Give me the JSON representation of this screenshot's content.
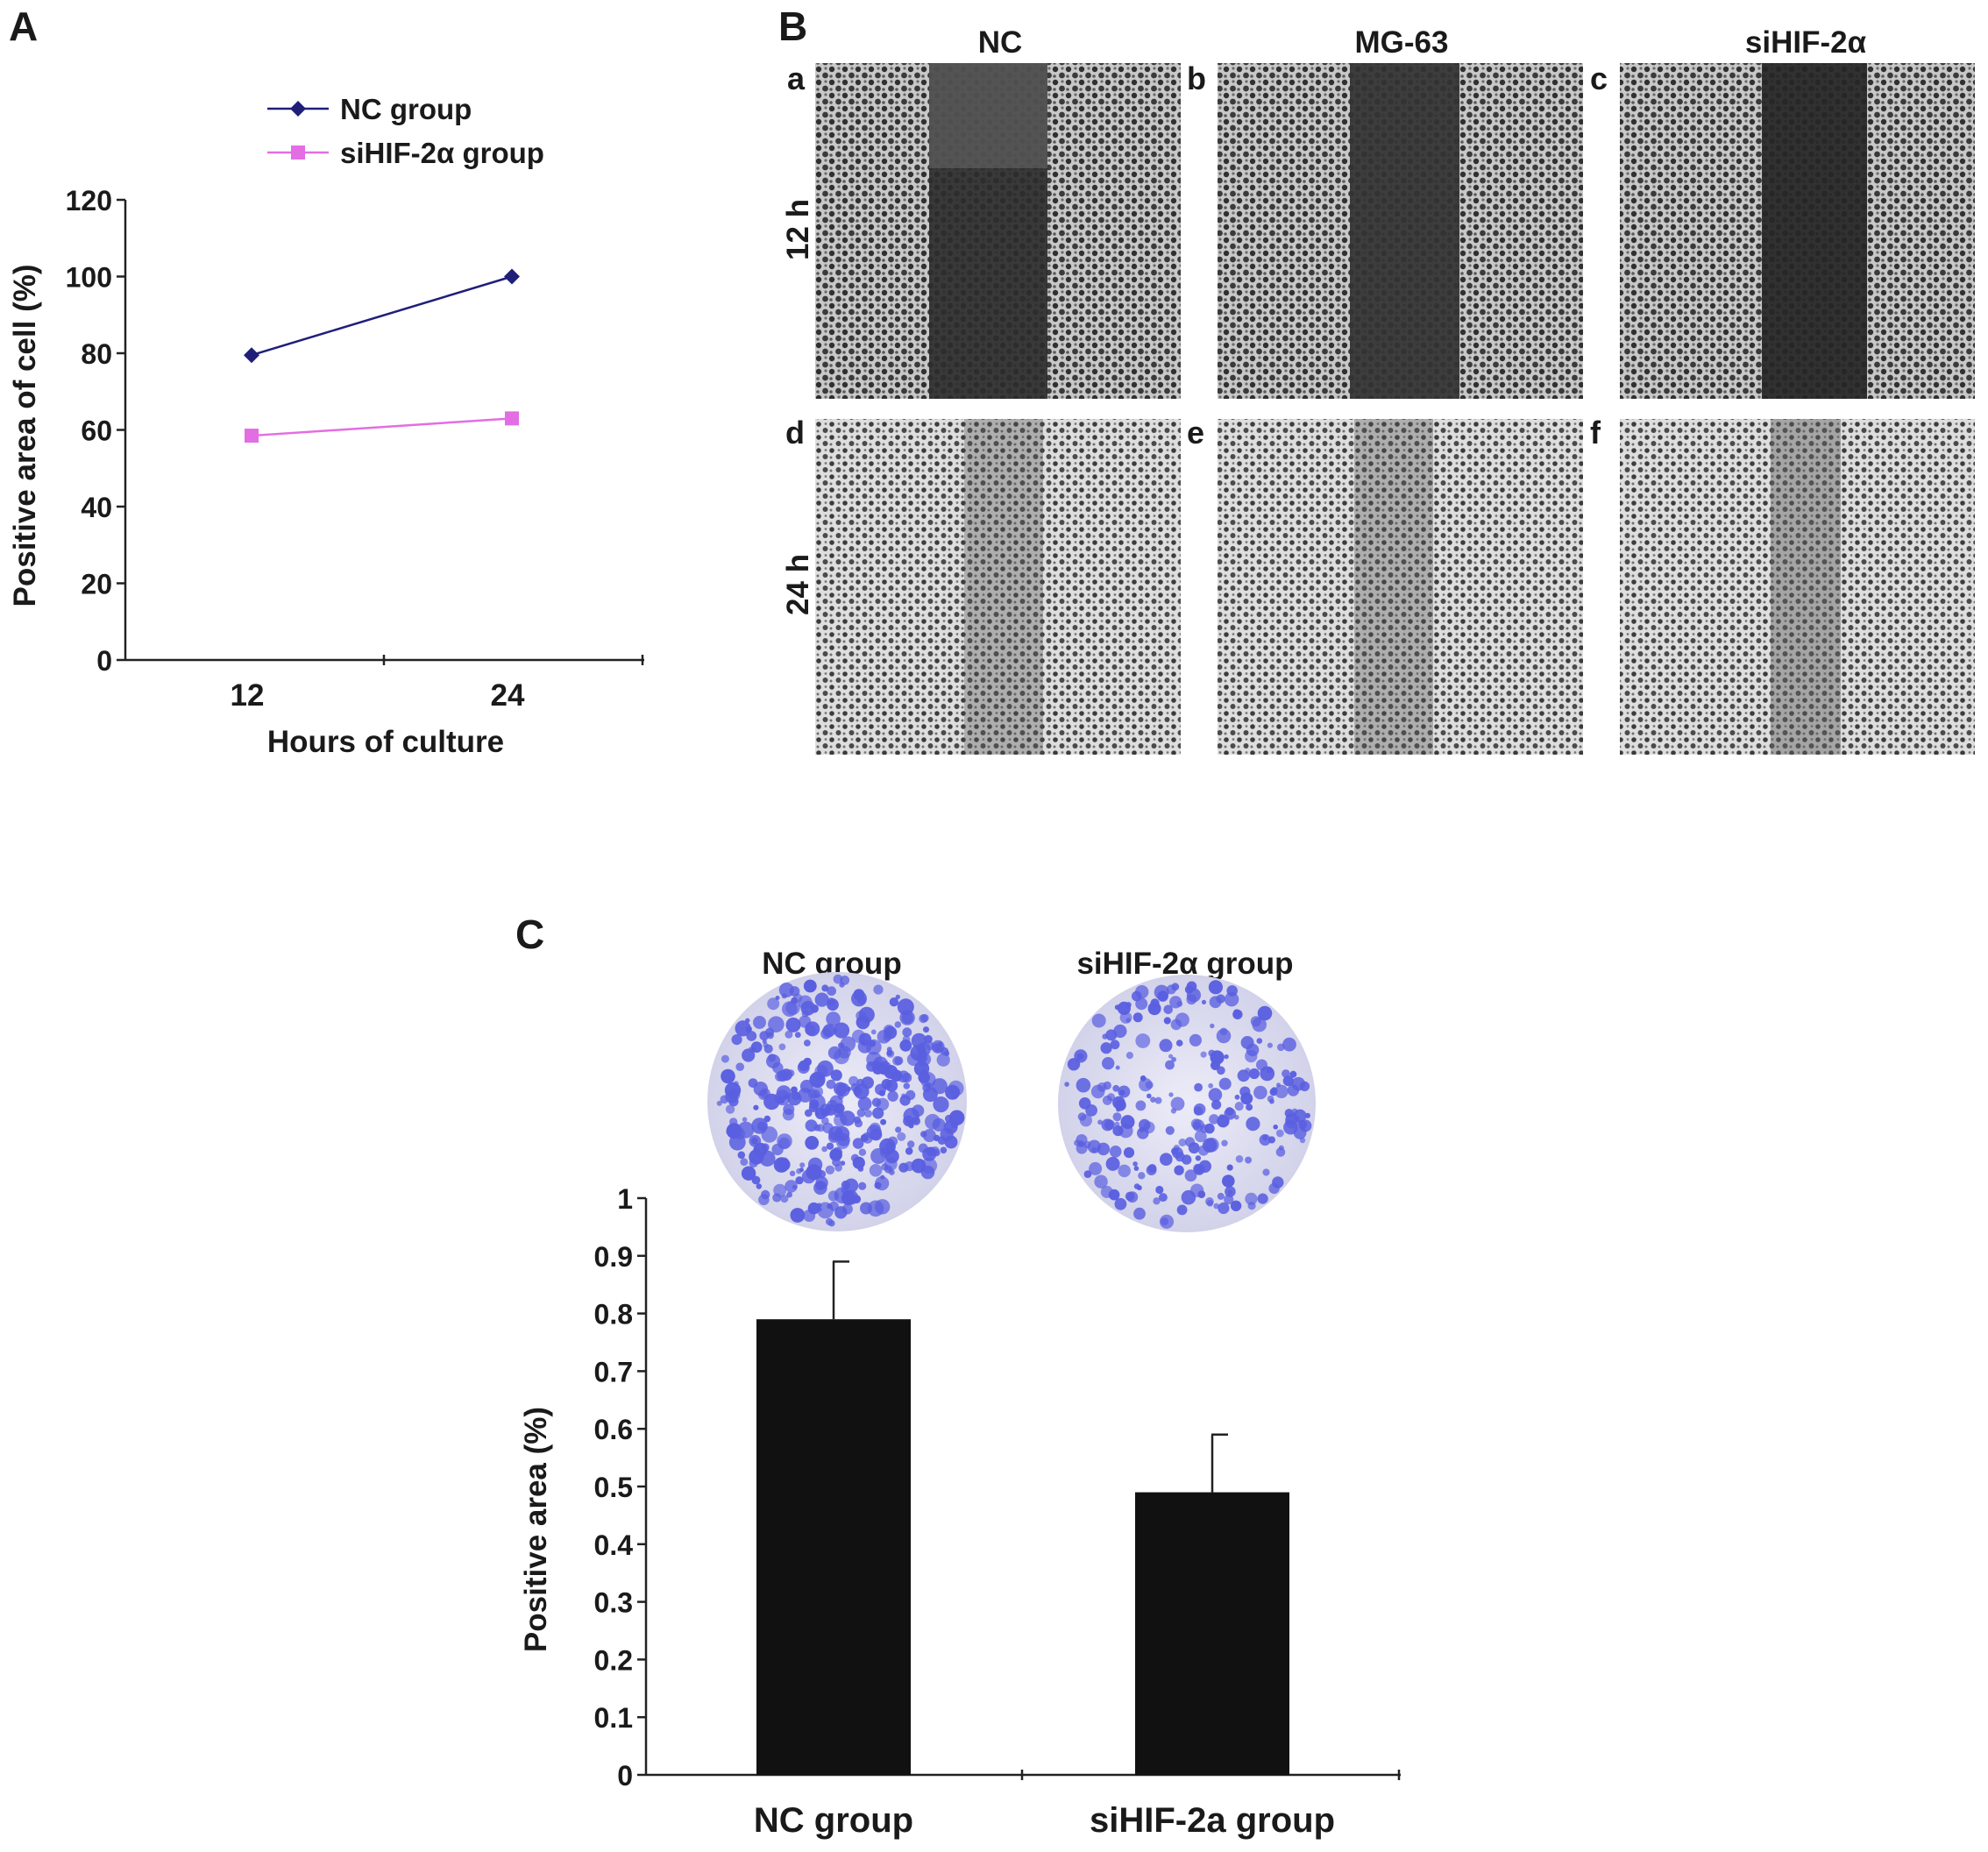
{
  "panel_labels": {
    "A": "A",
    "B": "B",
    "C": "C"
  },
  "panel_b": {
    "columns": [
      "NC",
      "MG-63",
      "siHIF-2α"
    ],
    "rows": [
      "12 h",
      "24 h"
    ],
    "image_letters": [
      "a",
      "b",
      "c",
      "d",
      "e",
      "f"
    ]
  },
  "panel_c": {
    "plate_labels": [
      "NC group",
      "siHIF-2α group"
    ],
    "colors": {
      "stain": "#5a5fe0",
      "background": "#dcdcf0"
    }
  },
  "chart_data": [
    {
      "type": "line",
      "x": [
        12,
        24
      ],
      "xlabel": "Hours of culture",
      "ylabel": "Positive area of cell (%)",
      "xticks": [
        "12",
        "24"
      ],
      "yticks": [
        "0",
        "20",
        "40",
        "60",
        "80",
        "100",
        "120"
      ],
      "ylim": [
        0,
        120
      ],
      "legend_position": "top",
      "series": [
        {
          "name": "NC group",
          "values": [
            79.5,
            100
          ],
          "color": "#1f1f7a",
          "marker": "diamond"
        },
        {
          "name": "siHIF-2α group",
          "values": [
            58.5,
            63
          ],
          "color": "#e36de3",
          "marker": "square"
        }
      ]
    },
    {
      "type": "bar",
      "categories": [
        "NC group",
        "siHIF-2a group"
      ],
      "values": [
        0.79,
        0.49
      ],
      "errors": [
        0.1,
        0.1
      ],
      "ylabel": "Positive area (%)",
      "yticks": [
        "0",
        "0.1",
        "0.2",
        "0.3",
        "0.4",
        "0.5",
        "0.6",
        "0.7",
        "0.8",
        "0.9",
        "1"
      ],
      "ylim": [
        0,
        1
      ],
      "color": "#111111"
    }
  ]
}
